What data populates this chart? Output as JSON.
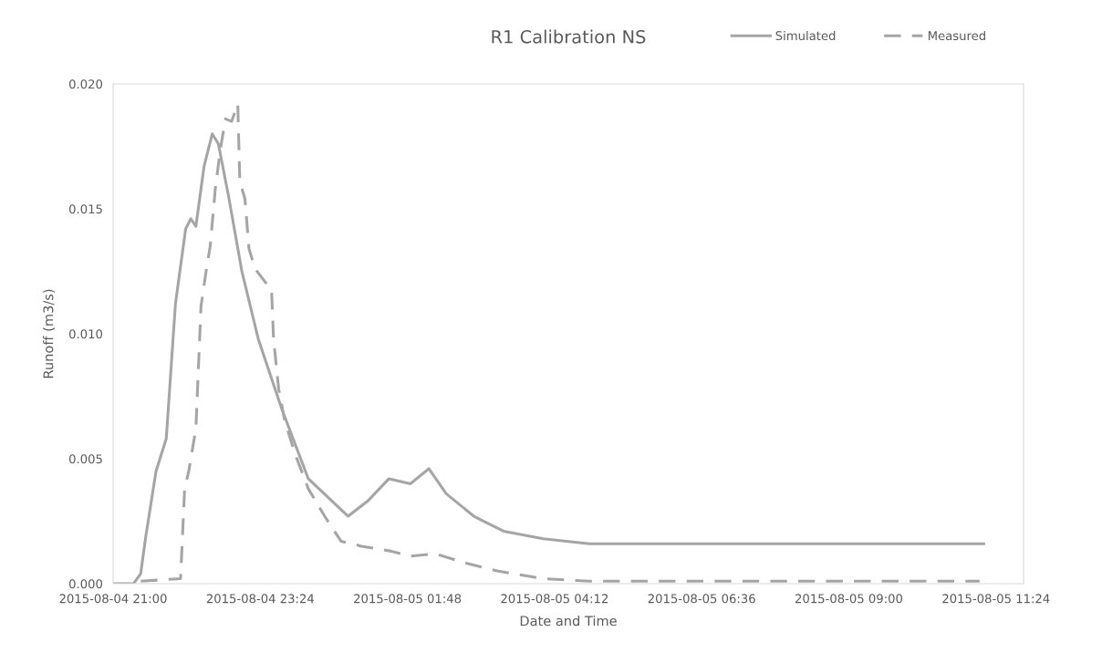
{
  "chart_data": {
    "type": "line",
    "title": "R1 Calibration NS",
    "xlabel": "Date and Time",
    "ylabel": "Runoff (m3/s)",
    "xlim": [
      "2015-08-04T21:00",
      "2015-08-05T11:51"
    ],
    "xticks": [
      {
        "value": "2015-08-04T21:00",
        "label": "2015-08-04 21:00"
      },
      {
        "value": "2015-08-04T23:24",
        "label": "2015-08-04 23:24"
      },
      {
        "value": "2015-08-05T01:48",
        "label": "2015-08-05 01:48"
      },
      {
        "value": "2015-08-05T04:12",
        "label": "2015-08-05 04:12"
      },
      {
        "value": "2015-08-05T06:36",
        "label": "2015-08-05 06:36"
      },
      {
        "value": "2015-08-05T09:00",
        "label": "2015-08-05 09:00"
      },
      {
        "value": "2015-08-05T11:24",
        "label": "2015-08-05 11:24"
      }
    ],
    "ylim": [
      0,
      0.02
    ],
    "yticks": [
      {
        "value": 0,
        "label": "0.000"
      },
      {
        "value": 0.005,
        "label": "0.005"
      },
      {
        "value": 0.01,
        "label": "0.010"
      },
      {
        "value": 0.015,
        "label": "0.015"
      },
      {
        "value": 0.02,
        "label": "0.020"
      }
    ],
    "grid": false,
    "legend": "top right",
    "marker": "none",
    "series": [
      {
        "name": "Simulated",
        "color": "#a5a5a5",
        "line_style": "solid",
        "x": [
          "2015-08-04T21:00",
          "2015-08-04T21:20",
          "2015-08-04T21:27",
          "2015-08-04T21:32",
          "2015-08-04T21:42",
          "2015-08-04T21:52",
          "2015-08-04T22:01",
          "2015-08-04T22:11",
          "2015-08-04T22:16",
          "2015-08-04T22:21",
          "2015-08-04T22:29",
          "2015-08-04T22:37",
          "2015-08-04T22:43",
          "2015-08-04T22:53",
          "2015-08-04T23:06",
          "2015-08-04T23:22",
          "2015-08-04T23:45",
          "2015-08-05T00:11",
          "2015-08-05T00:50",
          "2015-08-05T01:09",
          "2015-08-05T01:30",
          "2015-08-05T01:51",
          "2015-08-05T02:09",
          "2015-08-05T02:26",
          "2015-08-05T02:53",
          "2015-08-05T03:22",
          "2015-08-05T04:01",
          "2015-08-05T04:46",
          "2015-08-05T05:45",
          "2015-08-05T11:12"
        ],
        "values": [
          0,
          0,
          0.0004,
          0.0019,
          0.0045,
          0.0058,
          0.0112,
          0.0142,
          0.0146,
          0.0143,
          0.0167,
          0.018,
          0.0176,
          0.0155,
          0.0125,
          0.0098,
          0.007,
          0.0042,
          0.0027,
          0.0033,
          0.0042,
          0.004,
          0.0046,
          0.0036,
          0.0027,
          0.0021,
          0.0018,
          0.0016,
          0.0016,
          0.0016
        ]
      },
      {
        "name": "Measured",
        "color": "#a5a5a5",
        "line_style": "dashed",
        "x": [
          "2015-08-04T21:27",
          "2015-08-04T22:06",
          "2015-08-04T22:10",
          "2015-08-04T22:14",
          "2015-08-04T22:21",
          "2015-08-04T22:26",
          "2015-08-04T22:31",
          "2015-08-04T22:35",
          "2015-08-04T22:40",
          "2015-08-04T22:45",
          "2015-08-04T22:50",
          "2015-08-04T22:56",
          "2015-08-04T23:02",
          "2015-08-04T23:04",
          "2015-08-04T23:09",
          "2015-08-04T23:13",
          "2015-08-04T23:19",
          "2015-08-04T23:32",
          "2015-08-04T23:35",
          "2015-08-04T23:37",
          "2015-08-04T23:42",
          "2015-08-04T23:48",
          "2015-08-04T23:58",
          "2015-08-05T00:11",
          "2015-08-05T00:27",
          "2015-08-05T00:43",
          "2015-08-05T01:03",
          "2015-08-05T01:32",
          "2015-08-05T01:51",
          "2015-08-05T02:15",
          "2015-08-05T02:47",
          "2015-08-05T03:17",
          "2015-08-05T04:01",
          "2015-08-05T04:46",
          "2015-08-05T11:08"
        ],
        "values": [
          0.0001,
          0.0002,
          0.0038,
          0.0045,
          0.0062,
          0.0111,
          0.0125,
          0.0135,
          0.0158,
          0.0174,
          0.0186,
          0.0185,
          0.0192,
          0.0161,
          0.0154,
          0.0134,
          0.0126,
          0.0119,
          0.0118,
          0.0098,
          0.0078,
          0.0065,
          0.0052,
          0.0038,
          0.0027,
          0.0017,
          0.0015,
          0.0013,
          0.0011,
          0.0012,
          0.0008,
          0.0005,
          0.0002,
          0.0001,
          0.0001
        ]
      }
    ]
  }
}
